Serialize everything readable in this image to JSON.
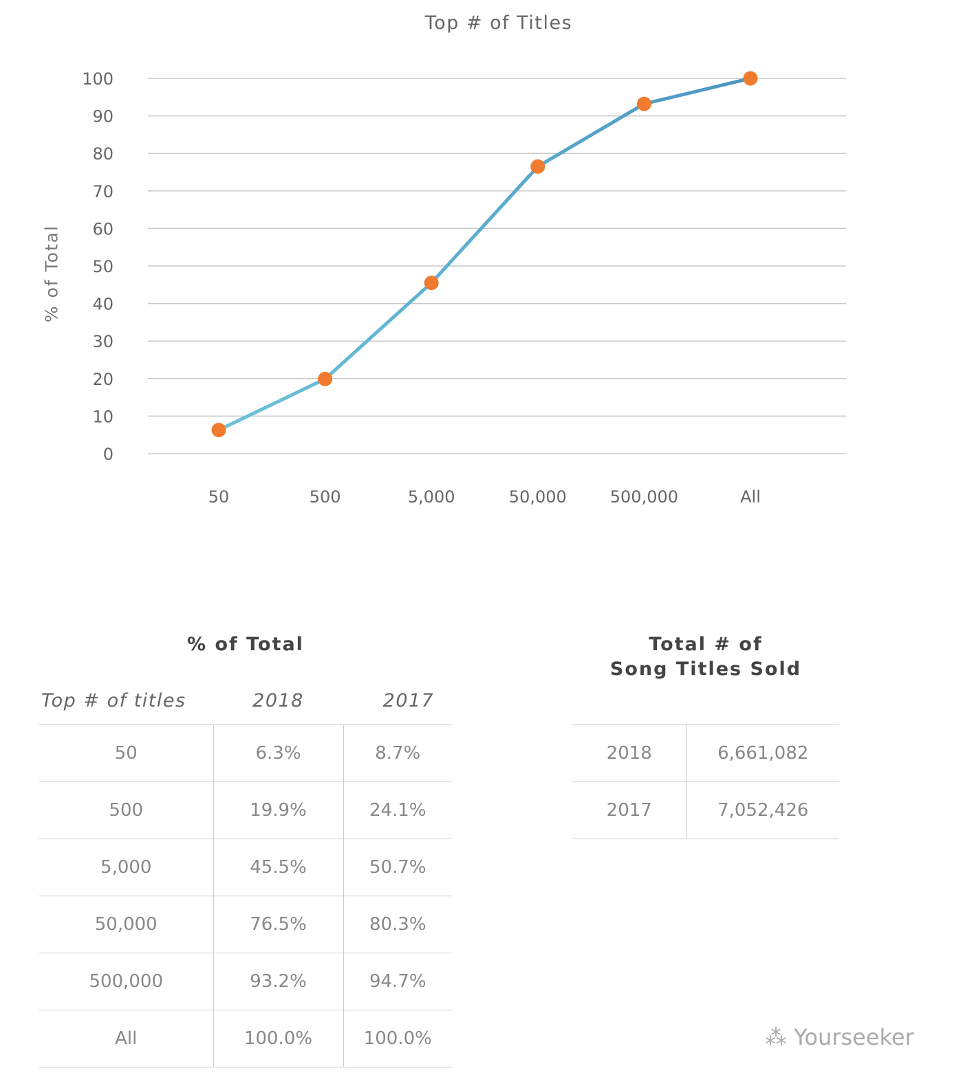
{
  "chart_data": {
    "type": "line",
    "title": "Top # of Titles",
    "ylabel": "% of Total",
    "xlabel": "",
    "categories": [
      "50",
      "500",
      "5,000",
      "50,000",
      "500,000",
      "All"
    ],
    "values": [
      6.3,
      19.9,
      45.5,
      76.5,
      93.2,
      100.0
    ],
    "ylim": [
      0,
      100
    ],
    "yticks": [
      0,
      10,
      20,
      30,
      40,
      50,
      60,
      70,
      80,
      90,
      100
    ],
    "grid": true,
    "line_color": "#5aa9cf",
    "marker_color": "#f07a2e"
  },
  "pct_table": {
    "title": "% of Total",
    "headers": [
      "Top # of titles",
      "2018",
      "2017"
    ],
    "rows": [
      [
        "50",
        "6.3%",
        "8.7%"
      ],
      [
        "500",
        "19.9%",
        "24.1%"
      ],
      [
        "5,000",
        "45.5%",
        "50.7%"
      ],
      [
        "50,000",
        "76.5%",
        "80.3%"
      ],
      [
        "500,000",
        "93.2%",
        "94.7%"
      ],
      [
        "All",
        "100.0%",
        "100.0%"
      ]
    ]
  },
  "total_table": {
    "title_line1": "Total # of",
    "title_line2": "Song Titles Sold",
    "rows": [
      [
        "2018",
        "6,661,082"
      ],
      [
        "2017",
        "7,052,426"
      ]
    ]
  },
  "watermark": "Yourseeker"
}
